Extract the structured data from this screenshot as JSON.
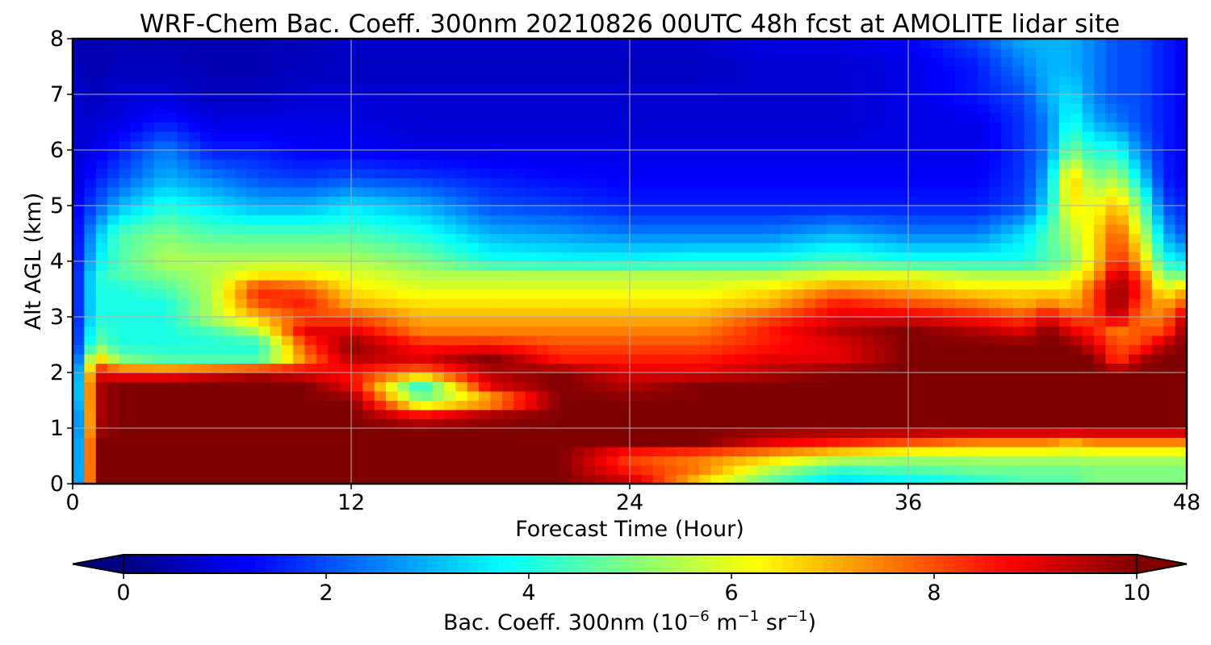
{
  "chart_data": {
    "type": "heatmap",
    "title": "WRF-Chem Bac. Coeff. 300nm  20210826 00UTC 48h fcst at AMOLITE lidar site",
    "xlabel": "Forecast Time (Hour)",
    "ylabel": "Alt AGL (km)",
    "xlim": [
      0,
      48
    ],
    "ylim": [
      0,
      8
    ],
    "x_ticks": [
      "0",
      "12",
      "24",
      "36",
      "48"
    ],
    "y_ticks": [
      "0",
      "1",
      "2",
      "3",
      "4",
      "5",
      "6",
      "7",
      "8"
    ],
    "grid": true,
    "colormap": "jet",
    "colorbar": {
      "label_main": "Bac. Coeff. 300nm  (10",
      "label_exp1": "−6",
      "label_mid": " m",
      "label_exp2": "−1",
      "label_mid2": " sr",
      "label_exp3": "−1",
      "label_end": ")",
      "range": [
        0,
        10
      ],
      "ticks": [
        "0",
        "2",
        "4",
        "6",
        "8",
        "10"
      ],
      "extend": "both",
      "underflow_color": "#000080",
      "overflow_color": "#800000"
    },
    "altitude_km": [
      0,
      0.25,
      0.5,
      0.75,
      1,
      1.25,
      1.5,
      1.75,
      2,
      2.25,
      2.5,
      2.75,
      3,
      3.25,
      3.5,
      3.75,
      4,
      4.5,
      5,
      5.5,
      6,
      6.5,
      7,
      7.5,
      8
    ],
    "forecast_hour": [
      0,
      1,
      2,
      4,
      6,
      8,
      10,
      12,
      15,
      18,
      21,
      24,
      27,
      30,
      33,
      36,
      39,
      41,
      42,
      43,
      44,
      45,
      46,
      47,
      48
    ],
    "values": [
      [
        0.5,
        10,
        10,
        10,
        10,
        10,
        10,
        10,
        10,
        10,
        10,
        9.5,
        6.5,
        4.5,
        3.2,
        3.5,
        4.0,
        4.5,
        4.5,
        4.5,
        5.0,
        5.0,
        5.0,
        5.0,
        5.0
      ],
      [
        0.5,
        10,
        10,
        10,
        10,
        10,
        10,
        10,
        10,
        10,
        10,
        8.5,
        7.5,
        5.5,
        4.2,
        4.5,
        4.8,
        4.8,
        4.8,
        4.8,
        5.0,
        5.0,
        5.0,
        5.0,
        5.0
      ],
      [
        0.5,
        10,
        10,
        10,
        10,
        10,
        10,
        10,
        10,
        10,
        10,
        8.0,
        7.5,
        7.0,
        6.0,
        5.5,
        5.5,
        5.5,
        5.5,
        5.5,
        5.5,
        5.5,
        5.5,
        5.5,
        5.5
      ],
      [
        0.5,
        10,
        10,
        10,
        10,
        10,
        10,
        10,
        10,
        10,
        10,
        10,
        10,
        9.0,
        8.5,
        8.0,
        7.5,
        7.5,
        7.5,
        7.0,
        7.5,
        7.5,
        7.5,
        7.5,
        7.5
      ],
      [
        0.5,
        9.5,
        10,
        10,
        10,
        10,
        10,
        10,
        10,
        10,
        10,
        10,
        10,
        10,
        10,
        10,
        10,
        10,
        10,
        10,
        10,
        10,
        10,
        10,
        10
      ],
      [
        0.5,
        9.5,
        10,
        10,
        10,
        10,
        10,
        10,
        8.5,
        9.5,
        10,
        10,
        10,
        10,
        10,
        10,
        10,
        10,
        10,
        10,
        10,
        10,
        10,
        10,
        10
      ],
      [
        1.0,
        9.5,
        10,
        10,
        10,
        10,
        10,
        10,
        5.0,
        6.5,
        10,
        10,
        10,
        10,
        10,
        10,
        10,
        10,
        10,
        10,
        10,
        10,
        10,
        10,
        10
      ],
      [
        1.0,
        9.5,
        10,
        10,
        10,
        10,
        10,
        9.0,
        4.0,
        9.0,
        10,
        9.5,
        10,
        10,
        10,
        10,
        10,
        10,
        10,
        10,
        10,
        10,
        10,
        10,
        10
      ],
      [
        1.0,
        9.0,
        8.5,
        8.5,
        9.0,
        9.5,
        9.0,
        8.5,
        7.5,
        9.5,
        10,
        9.0,
        9.0,
        9.5,
        10,
        10,
        10,
        10,
        10,
        10,
        10,
        10,
        10,
        10,
        10
      ],
      [
        1.0,
        7.0,
        5.0,
        4.5,
        4.5,
        4.5,
        7.5,
        9.5,
        9.0,
        10,
        8.5,
        8.5,
        8.5,
        9.0,
        9.0,
        10,
        10,
        10,
        10,
        10,
        10,
        8.0,
        9.5,
        10,
        10
      ],
      [
        1.0,
        5.0,
        4.0,
        4.0,
        4.0,
        4.0,
        8.0,
        10,
        8.5,
        8.5,
        8.0,
        8.0,
        8.0,
        8.5,
        9.0,
        10,
        10,
        10,
        10,
        10,
        9.0,
        8.0,
        8.0,
        9.5,
        10
      ],
      [
        1.0,
        4.5,
        4.0,
        4.0,
        4.5,
        5.5,
        9.0,
        9.0,
        7.5,
        7.5,
        7.5,
        7.5,
        7.5,
        8.5,
        9.5,
        10,
        9.5,
        9.0,
        10,
        9.0,
        8.5,
        7.5,
        8.0,
        8.0,
        10
      ],
      [
        1.0,
        4.0,
        4.0,
        4.0,
        5.5,
        7.0,
        8.0,
        8.0,
        7.0,
        7.0,
        7.0,
        7.0,
        7.0,
        8.0,
        9.0,
        9.0,
        8.5,
        8.0,
        9.0,
        8.0,
        8.0,
        9.5,
        7.5,
        7.5,
        9.5
      ],
      [
        1.0,
        4.0,
        4.0,
        4.0,
        5.5,
        8.0,
        8.5,
        7.0,
        6.5,
        6.5,
        6.5,
        6.5,
        6.5,
        7.0,
        8.5,
        8.0,
        7.5,
        7.0,
        7.5,
        7.0,
        8.0,
        10,
        8.0,
        7.0,
        8.0
      ],
      [
        1.0,
        4.0,
        4.0,
        4.5,
        5.5,
        8.5,
        8.0,
        6.5,
        6.0,
        6.0,
        6.0,
        6.0,
        6.0,
        6.5,
        7.5,
        7.0,
        6.5,
        6.5,
        6.5,
        6.5,
        8.0,
        10,
        8.5,
        6.0,
        7.0
      ],
      [
        1.0,
        4.0,
        4.5,
        5.0,
        5.5,
        6.5,
        6.5,
        6.0,
        5.5,
        5.5,
        5.5,
        5.5,
        5.5,
        5.5,
        6.0,
        6.0,
        5.5,
        5.5,
        5.5,
        6.0,
        7.0,
        9.5,
        8.0,
        5.0,
        5.0
      ],
      [
        1.0,
        3.5,
        4.5,
        5.5,
        5.5,
        5.5,
        5.5,
        5.5,
        5.0,
        4.0,
        3.8,
        3.8,
        4.0,
        4.0,
        4.5,
        4.0,
        4.0,
        4.0,
        4.5,
        5.0,
        6.5,
        8.5,
        7.0,
        4.0,
        3.5
      ],
      [
        1.0,
        3.0,
        4.5,
        5.0,
        4.5,
        4.5,
        4.5,
        4.5,
        4.0,
        3.0,
        2.8,
        2.5,
        2.5,
        2.5,
        3.0,
        2.5,
        2.5,
        3.5,
        4.5,
        5.5,
        6.5,
        8.0,
        6.0,
        3.0,
        2.0
      ],
      [
        1.0,
        2.0,
        3.0,
        4.0,
        3.5,
        3.0,
        3.0,
        3.5,
        3.0,
        2.0,
        1.8,
        1.5,
        1.5,
        1.5,
        1.5,
        1.5,
        1.5,
        2.0,
        3.5,
        6.5,
        6.0,
        7.0,
        5.0,
        2.0,
        1.5
      ],
      [
        0.8,
        1.5,
        2.0,
        3.0,
        2.5,
        2.0,
        1.8,
        2.0,
        1.8,
        1.5,
        1.3,
        1.2,
        1.2,
        1.2,
        1.2,
        1.2,
        1.2,
        1.8,
        3.0,
        7.0,
        5.0,
        5.5,
        3.5,
        1.5,
        1.2
      ],
      [
        0.8,
        1.0,
        1.5,
        2.5,
        1.5,
        1.5,
        1.2,
        1.2,
        1.0,
        1.0,
        1.0,
        1.0,
        1.0,
        1.0,
        1.0,
        1.0,
        1.0,
        1.8,
        2.5,
        5.0,
        4.0,
        4.0,
        2.5,
        1.5,
        1.2
      ],
      [
        0.8,
        0.8,
        1.0,
        1.5,
        1.0,
        1.0,
        1.0,
        1.0,
        0.8,
        0.8,
        0.8,
        0.8,
        0.8,
        0.8,
        0.8,
        1.0,
        1.0,
        1.8,
        2.5,
        4.0,
        3.0,
        2.5,
        2.0,
        1.5,
        1.2
      ],
      [
        0.8,
        0.6,
        0.8,
        0.8,
        0.6,
        0.6,
        0.8,
        0.8,
        0.8,
        0.8,
        0.8,
        0.8,
        0.8,
        0.8,
        0.8,
        1.0,
        1.5,
        2.0,
        3.0,
        3.5,
        2.5,
        2.0,
        2.0,
        1.5,
        1.2
      ],
      [
        0.6,
        0.5,
        0.6,
        0.6,
        0.5,
        0.5,
        0.6,
        0.6,
        0.6,
        0.6,
        0.6,
        0.6,
        0.6,
        0.8,
        0.8,
        1.0,
        1.5,
        2.5,
        3.0,
        3.0,
        2.5,
        2.0,
        2.0,
        1.5,
        1.2
      ],
      [
        0.5,
        0.5,
        0.5,
        0.5,
        0.5,
        0.5,
        0.6,
        0.8,
        0.8,
        0.8,
        0.8,
        0.8,
        0.8,
        1.0,
        1.0,
        1.2,
        2.0,
        3.0,
        3.0,
        3.0,
        2.5,
        2.0,
        2.0,
        1.5,
        1.2
      ]
    ]
  }
}
